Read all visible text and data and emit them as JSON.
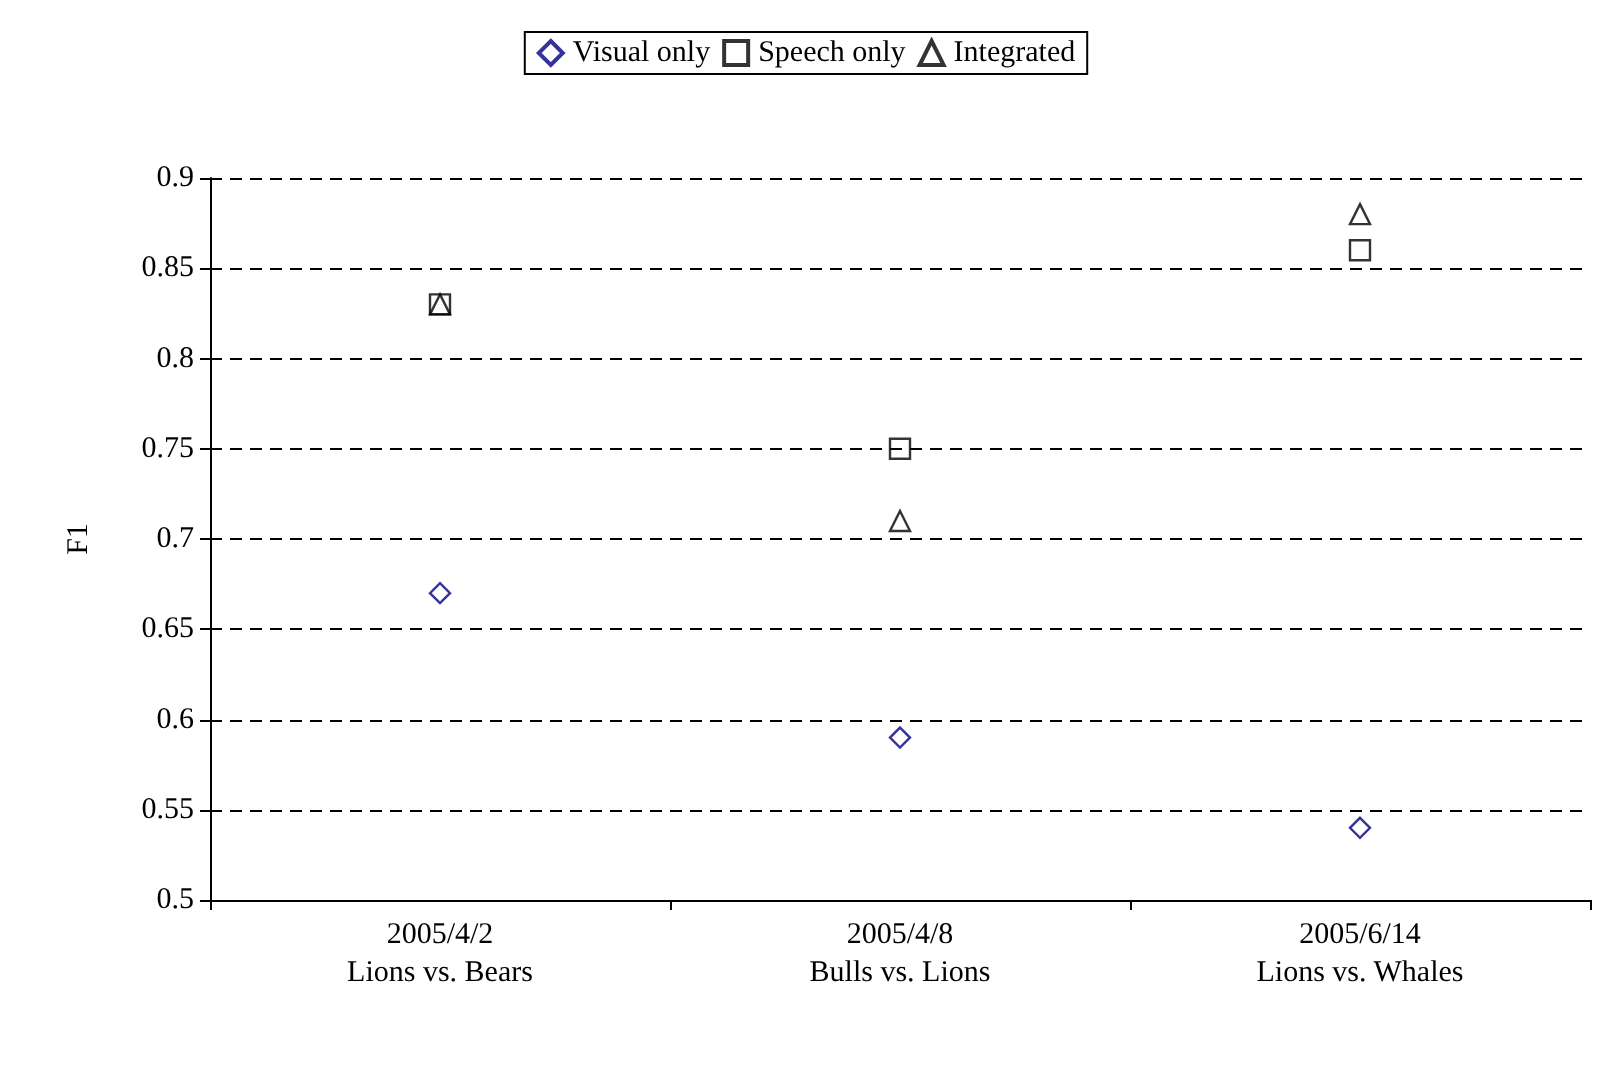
{
  "chart_data": {
    "type": "scatter",
    "ylabel": "F1",
    "categories": [
      "2005/4/2\nLions vs. Bears",
      "2005/4/8\nBulls vs. Lions",
      "2005/6/14\nLions vs. Whales"
    ],
    "series": [
      {
        "name": "Visual only",
        "color": "#000080",
        "marker": "diamond",
        "values": [
          0.67,
          0.59,
          0.54
        ]
      },
      {
        "name": "Speech only",
        "color": "#000000",
        "marker": "square",
        "values": [
          0.83,
          0.75,
          0.86
        ]
      },
      {
        "name": "Integrated",
        "color": "#000000",
        "marker": "triangle",
        "values": [
          0.83,
          0.71,
          0.88
        ]
      }
    ],
    "ylim": [
      0.5,
      0.9
    ],
    "yticks": [
      0.5,
      0.55,
      0.6,
      0.65,
      0.7,
      0.75,
      0.8,
      0.85,
      0.9
    ],
    "grid": "y",
    "legend": "top"
  }
}
